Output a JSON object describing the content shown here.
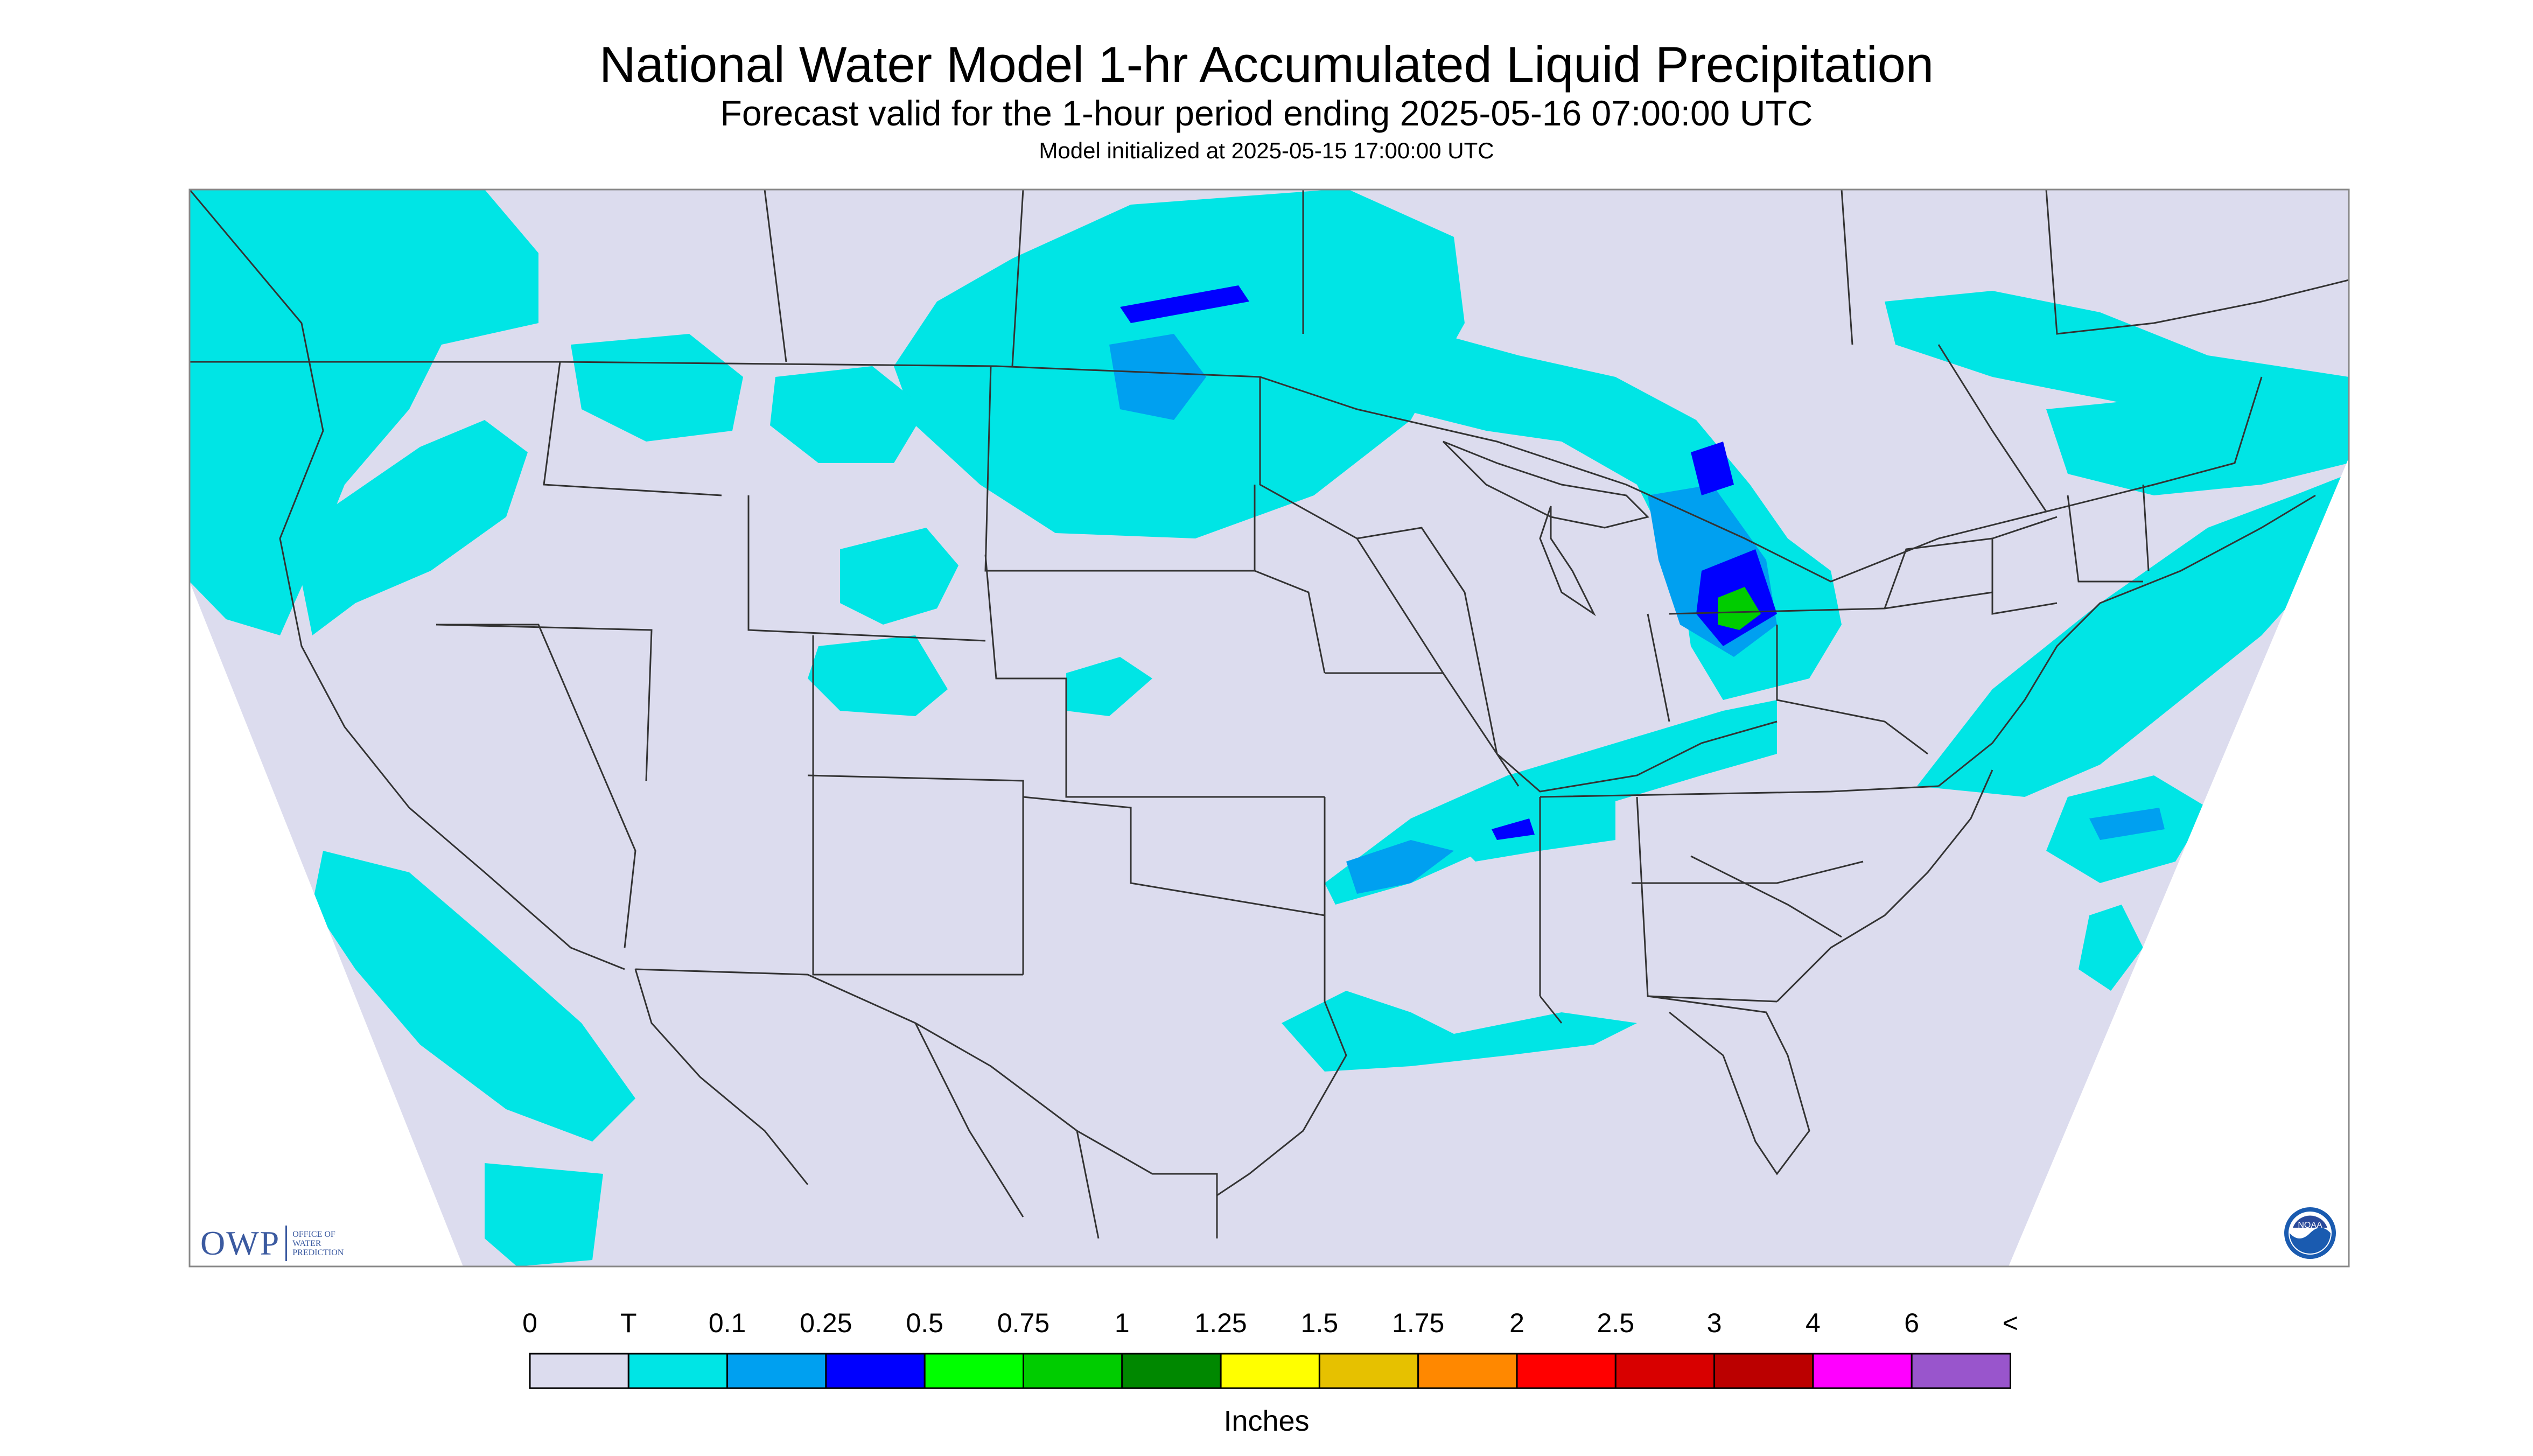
{
  "header": {
    "title": "National Water Model 1-hr Accumulated Liquid Precipitation",
    "subtitle": "Forecast valid for the 1-hour period ending 2025-05-16 07:00:00 UTC",
    "init": "Model initialized at 2025-05-15 17:00:00 UTC"
  },
  "map": {
    "background_color": "#dcdcee",
    "region": "Continental United States",
    "boundary_color": "#333333"
  },
  "legend": {
    "labels": [
      "0",
      "T",
      "0.1",
      "0.25",
      "0.5",
      "0.75",
      "1",
      "1.25",
      "1.5",
      "1.75",
      "2",
      "2.5",
      "3",
      "4",
      "6",
      "<"
    ],
    "colors": [
      "#dcdcee",
      "#00e5e5",
      "#00a0f0",
      "#0000ff",
      "#00ff00",
      "#00cc00",
      "#008800",
      "#ffff00",
      "#e6c100",
      "#ff8800",
      "#ff0000",
      "#d80000",
      "#bb0000",
      "#ff00ff",
      "#9955cc"
    ],
    "units": "Inches"
  },
  "logos": {
    "owp_text": "OWP",
    "owp_line1": "OFFICE OF",
    "owp_line2": "WATER",
    "owp_line3": "PREDICTION",
    "noaa_text": "NOAA"
  }
}
